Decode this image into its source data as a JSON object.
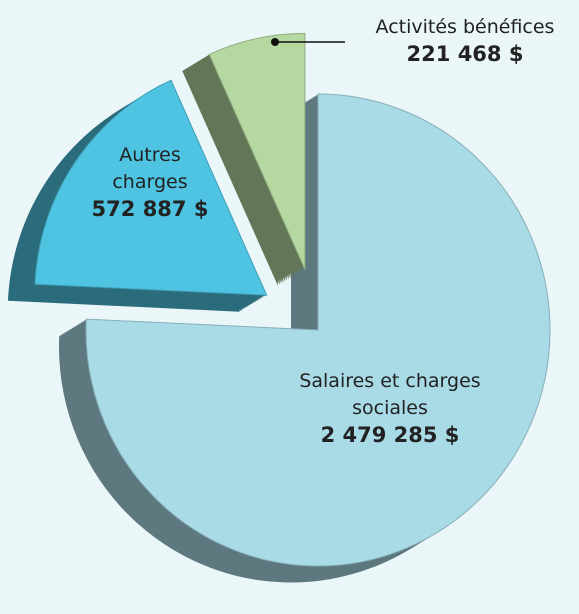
{
  "chart_data": {
    "type": "pie",
    "categories": [
      "Salaires et charges sociales",
      "Autres charges",
      "Activités bénéfices"
    ],
    "values": [
      2479285,
      572887,
      221468
    ],
    "value_labels": [
      "2 479 285 $",
      "572 887 $",
      "221 468 $"
    ],
    "colors": [
      "#a9dbe7",
      "#4fc4e2",
      "#b4d8a0"
    ]
  }
}
